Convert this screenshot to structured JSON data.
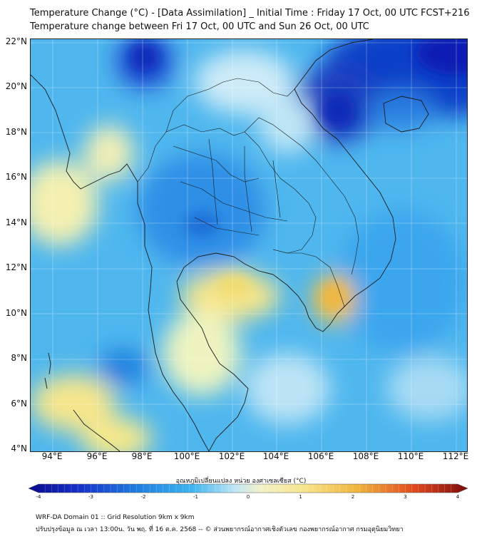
{
  "header": {
    "title_line1": "Temperature Change (°C) - [Data Assimilation] _ Initial Time : Friday 17 Oct, 00 UTC FCST+216",
    "title_line2": "Temperature change between Fri 17 Oct, 00 UTC and Sun 26 Oct, 00 UTC"
  },
  "map": {
    "lat_labels": [
      "22°N",
      "20°N",
      "18°N",
      "16°N",
      "14°N",
      "12°N",
      "10°N",
      "8°N",
      "6°N",
      "4°N"
    ],
    "lon_labels": [
      "94°E",
      "96°E",
      "98°E",
      "100°E",
      "102°E",
      "104°E",
      "106°E",
      "108°E",
      "110°E",
      "112°E"
    ],
    "extent": {
      "lon": [
        93,
        112.5
      ],
      "lat": [
        4,
        22.2
      ]
    },
    "field": "temperature change (°C)",
    "colors": {
      "cold_extreme": "#0a1fb4",
      "cold": "#1e90e6",
      "neutral_cool": "#56c2f0",
      "near_zero": "#e8f6fb",
      "warm": "#f7e98a",
      "warm_extreme": "#f0b43c"
    }
  },
  "colorbar": {
    "title": "อุณหภูมิเปลี่ยนแปลง หน่วย องศาเซลเซียส (°C)",
    "ticks": [
      "-4",
      "-3",
      "-2",
      "-1",
      "0",
      "1",
      "2",
      "3",
      "4"
    ],
    "range": [
      -4,
      4
    ]
  },
  "footer": {
    "line1": "WRF-DA Domain 01 :: Grid Resolution 9km x 9km",
    "line2": "ปรับปรุงข้อมูล ณ เวลา 13:00น. วัน พฤ. ที่ 16 ต.ค. 2568 -- © ส่วนพยากรณ์อากาศเชิงตัวเลข กองพยากรณ์อากาศ กรมอุตุนิยมวิทยา"
  }
}
